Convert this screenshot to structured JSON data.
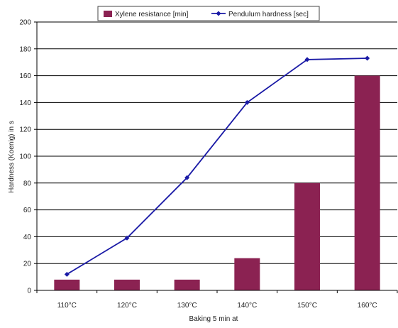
{
  "chart_data": {
    "type": "bar",
    "categories": [
      "110°C",
      "120°C",
      "130°C",
      "140°C",
      "150°C",
      "160°C"
    ],
    "series": [
      {
        "name": "Xylene resistance [min]",
        "kind": "bar",
        "color": "#8B2252",
        "values": [
          8,
          8,
          8,
          24,
          80,
          160
        ]
      },
      {
        "name": "Pendulum hardness [sec]",
        "kind": "line",
        "color": "#1a1aa6",
        "marker": "diamond",
        "values": [
          12,
          39,
          84,
          140,
          172,
          173
        ]
      }
    ],
    "title": "",
    "xlabel": "Baking 5 min at",
    "ylabel": "Hardness (Koenig) in s",
    "ylim": [
      0,
      200
    ],
    "yticks": [
      0,
      20,
      40,
      60,
      80,
      100,
      120,
      140,
      160,
      180,
      200
    ],
    "grid": true,
    "legend": "top"
  }
}
